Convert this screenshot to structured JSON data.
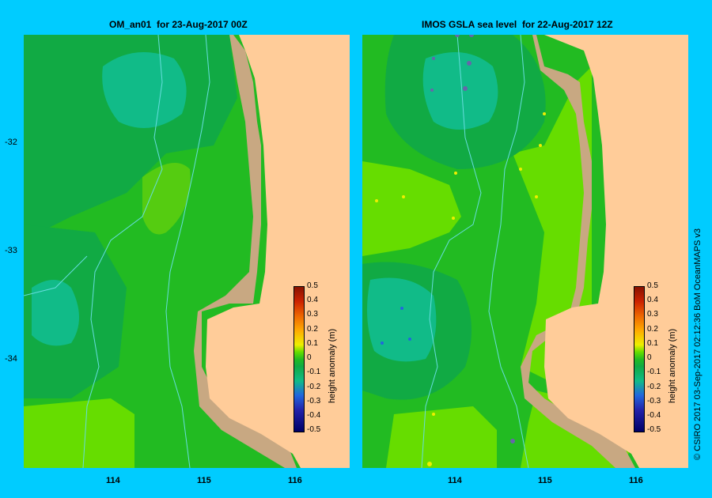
{
  "left_panel": {
    "title": "OM_an01  for 23-Aug-2017 00Z",
    "colorbar_label": "height anomaly (m)"
  },
  "right_panel": {
    "title": "IMOS GSLA sea level  for 22-Aug-2017 12Z",
    "colorbar_label": "height anomaly (m)"
  },
  "lat_ticks": [
    "-32",
    "-33",
    "-34"
  ],
  "lon_ticks": [
    "114",
    "115",
    "116"
  ],
  "colorbar_ticks": [
    "0.5",
    "0.4",
    "0.3",
    "0.2",
    "0.1",
    "0",
    "-0.1",
    "-0.2",
    "-0.3",
    "-0.4",
    "-0.5"
  ],
  "credit": "© CSIRO 2017   03-Sep-2017 02:12:36 BoM OceanMAPS v3",
  "colors": {
    "background": "#00ccff",
    "land": "#ffcc99",
    "shelf": "#c8a882",
    "anom_pos_0_1": "#66dd00",
    "anom_0": "#22bb22",
    "anom_neg_0_1": "#11aa33",
    "anom_neg_0_2": "#11bb88",
    "bathymetry_lines": "#66dddd"
  }
}
